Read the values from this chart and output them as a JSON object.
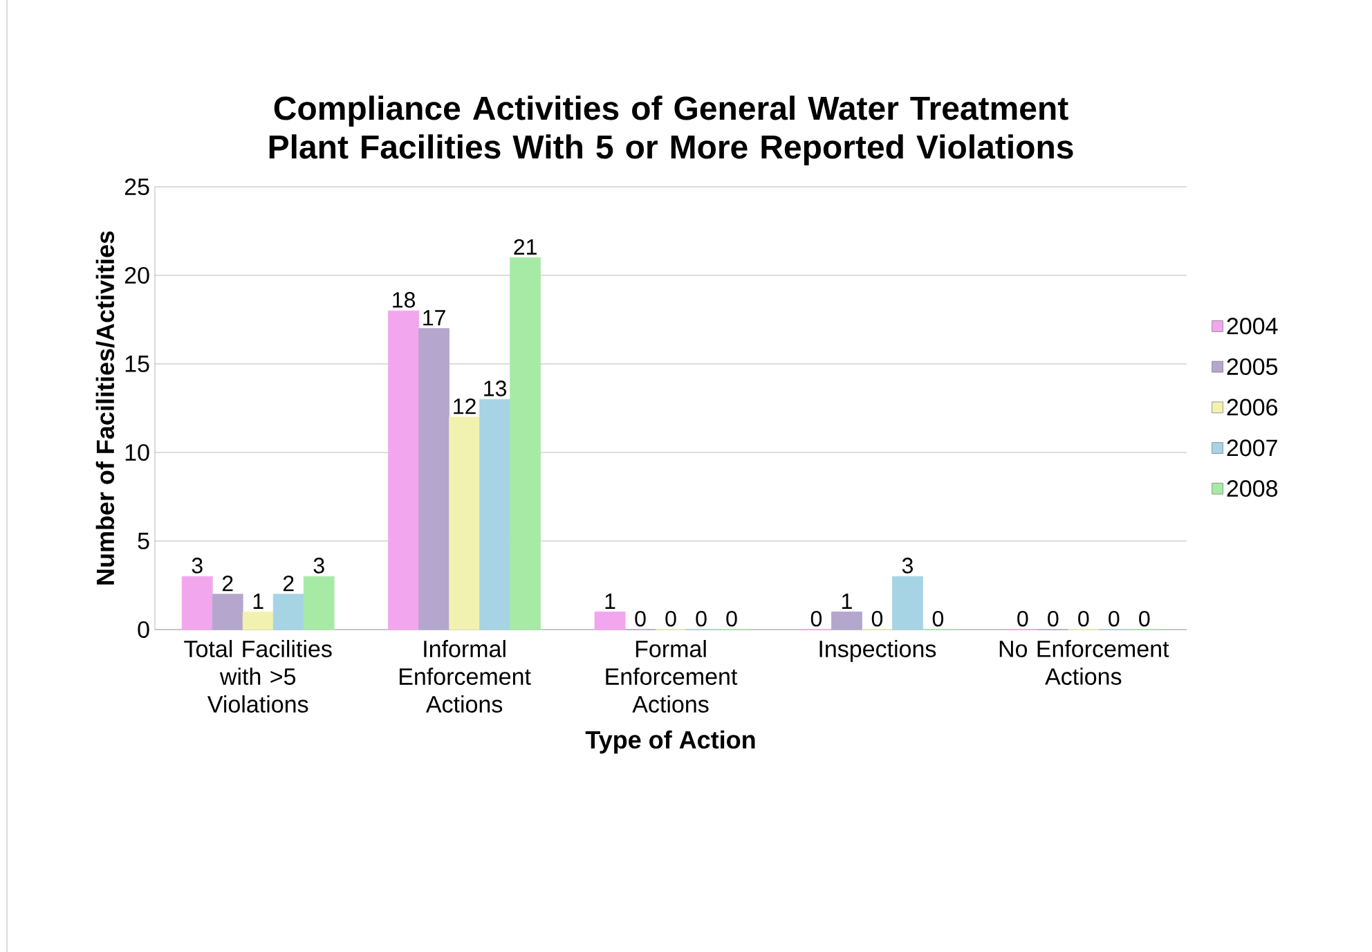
{
  "chart_data": {
    "type": "bar",
    "title": "Compliance Activities of General Water Treatment Plant Facilities With 5 or More Reported Violations",
    "xlabel": "Type of Action",
    "ylabel": "Number of Facilities/Activities",
    "categories": [
      "Total Facilities with >5 Violations",
      "Informal Enforcement Actions",
      "Formal Enforcement Actions",
      "Inspections",
      "No Enforcement Actions"
    ],
    "series": [
      {
        "name": "2004",
        "color": "#f2a6ee",
        "values": [
          3,
          18,
          1,
          0,
          0
        ]
      },
      {
        "name": "2005",
        "color": "#b4a6cc",
        "values": [
          2,
          17,
          0,
          1,
          0
        ]
      },
      {
        "name": "2006",
        "color": "#f2f2b0",
        "values": [
          1,
          12,
          0,
          0,
          0
        ]
      },
      {
        "name": "2007",
        "color": "#a6d4e4",
        "values": [
          2,
          13,
          0,
          3,
          0
        ]
      },
      {
        "name": "2008",
        "color": "#a6eaa6",
        "values": [
          3,
          21,
          0,
          0,
          0
        ]
      }
    ],
    "ylim": [
      0,
      25
    ],
    "yticks": [
      0,
      5,
      10,
      15,
      20,
      25
    ],
    "grid": "y",
    "legend": "right",
    "data_labels": true
  }
}
